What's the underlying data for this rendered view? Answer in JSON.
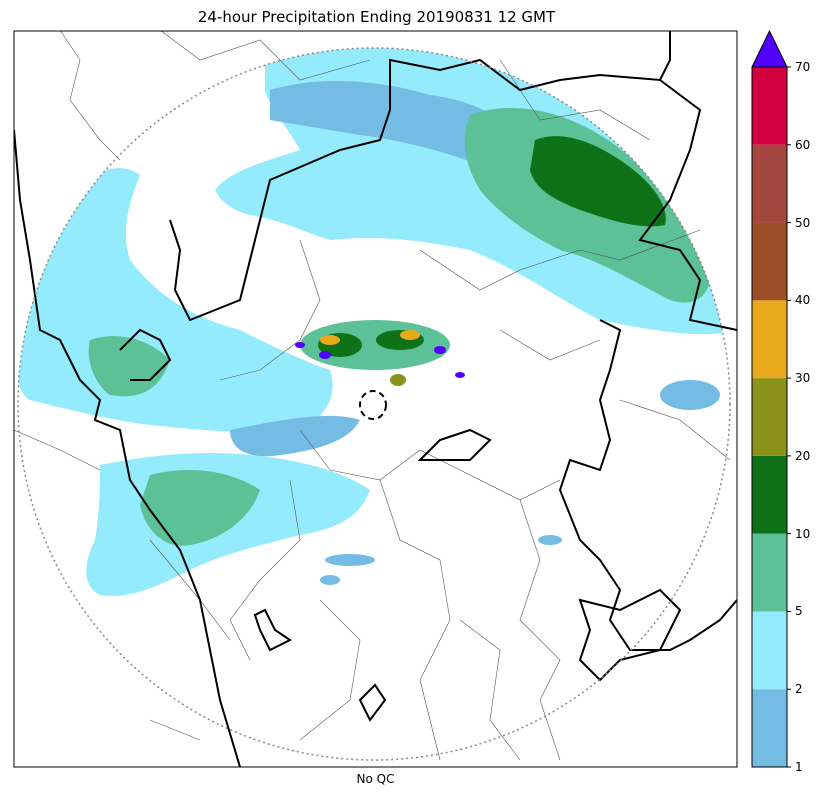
{
  "title": "24-hour Precipitation Ending 20190831 12 GMT",
  "xlabel": "No QC",
  "colorbar": {
    "levels": [
      1,
      2,
      5,
      10,
      20,
      30,
      40,
      50,
      60,
      70
    ],
    "tick_labels": [
      "1",
      "2",
      "5",
      "10",
      "20",
      "30",
      "40",
      "50",
      "60",
      "70"
    ],
    "colors": [
      "#74bce3",
      "#93ebfb",
      "#5cc196",
      "#0f7219",
      "#8a921a",
      "#e8aa1b",
      "#9c4f26",
      "#a3473f",
      "#d3003f"
    ],
    "extend_color": "#5200ff"
  },
  "map": {
    "type": "radar precipitation accumulation",
    "range_ring": "dotted circle",
    "colors": {
      "boundary_major": "#000000",
      "boundary_minor": "#555555",
      "ring": "#888888"
    }
  }
}
